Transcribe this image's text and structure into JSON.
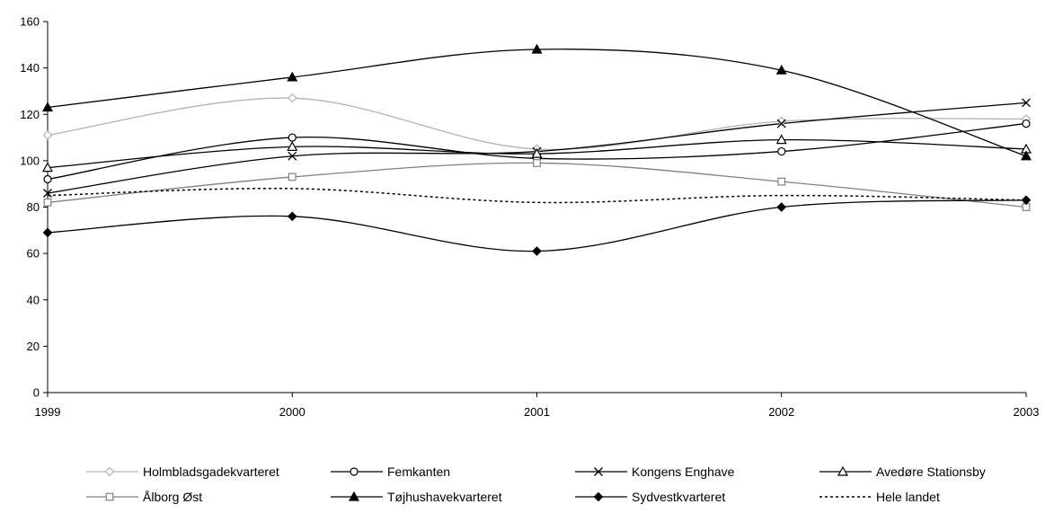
{
  "chart_data": {
    "type": "line",
    "title": "",
    "xlabel": "",
    "ylabel": "",
    "x": [
      1999,
      2000,
      2001,
      2002,
      2003
    ],
    "x_tick_labels": [
      "1999",
      "2000",
      "2001",
      "2002",
      "2003"
    ],
    "ylim": [
      0,
      160
    ],
    "y_ticks": [
      0,
      20,
      40,
      60,
      80,
      100,
      120,
      140,
      160
    ],
    "grid": false,
    "legend_position": "bottom",
    "series": [
      {
        "name": "Holmbladsgadekvarteret",
        "values": [
          111,
          127,
          105,
          117,
          118
        ],
        "color": "#b3b3b3",
        "marker": "diamond-open",
        "dash": "solid"
      },
      {
        "name": "Femkanten",
        "values": [
          92,
          110,
          101,
          104,
          116
        ],
        "color": "#000000",
        "marker": "circle-open",
        "dash": "solid"
      },
      {
        "name": "Kongens Enghave",
        "values": [
          86,
          102,
          104,
          116,
          125
        ],
        "color": "#000000",
        "marker": "x",
        "dash": "solid"
      },
      {
        "name": "Avedøre Stationsby",
        "values": [
          97,
          106,
          103,
          109,
          105
        ],
        "color": "#000000",
        "marker": "triangle-open",
        "dash": "solid"
      },
      {
        "name": "Ålborg Øst",
        "values": [
          82,
          93,
          99,
          91,
          80
        ],
        "color": "#808080",
        "marker": "square-open",
        "dash": "solid"
      },
      {
        "name": "Tøjhushavekvarteret",
        "values": [
          123,
          136,
          148,
          139,
          102
        ],
        "color": "#000000",
        "marker": "triangle-filled",
        "dash": "solid"
      },
      {
        "name": "Sydvestkvarteret",
        "values": [
          69,
          76,
          61,
          80,
          83
        ],
        "color": "#000000",
        "marker": "diamond-filled",
        "dash": "solid"
      },
      {
        "name": "Hele landet",
        "values": [
          85,
          88,
          82,
          85,
          83
        ],
        "color": "#000000",
        "marker": "none",
        "dash": "dotted"
      }
    ]
  }
}
